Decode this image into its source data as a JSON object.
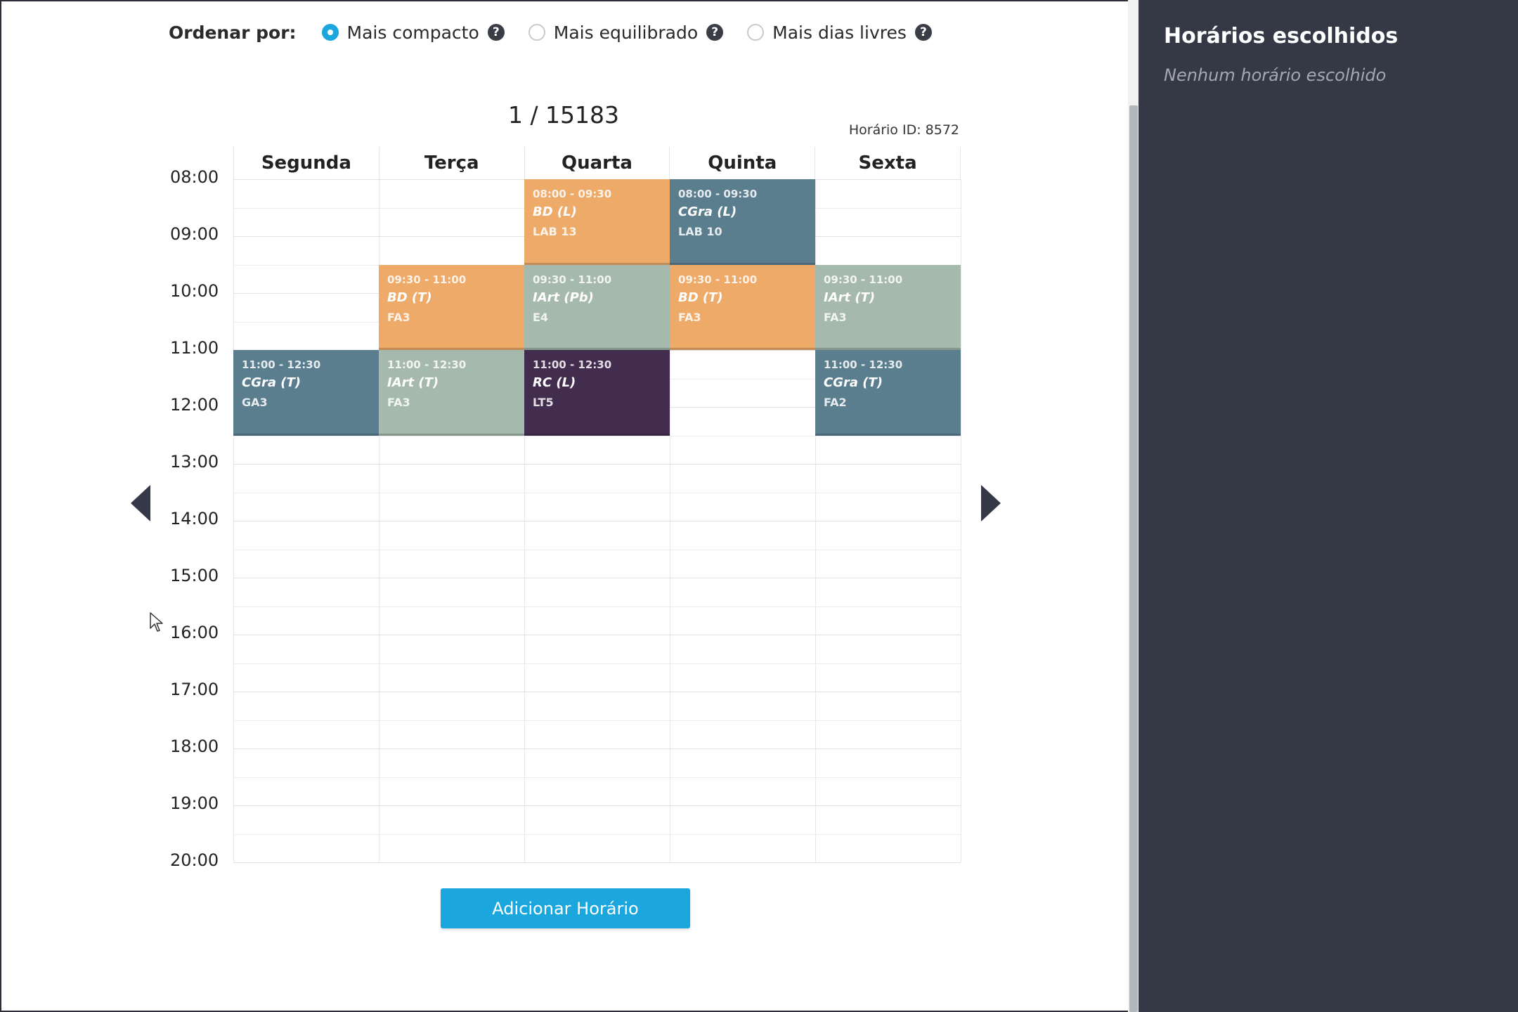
{
  "sort": {
    "label": "Ordenar por:",
    "options": [
      {
        "label": "Mais compacto",
        "checked": true
      },
      {
        "label": "Mais equilibrado",
        "checked": false
      },
      {
        "label": "Mais dias livres",
        "checked": false
      }
    ],
    "help_glyph": "?"
  },
  "pager": {
    "counter": "1 / 15183",
    "schedule_id": "Horário ID: 8572"
  },
  "timetable": {
    "days": [
      "Segunda",
      "Terça",
      "Quarta",
      "Quinta",
      "Sexta"
    ],
    "hours": [
      "08:00",
      "09:00",
      "10:00",
      "11:00",
      "12:00",
      "13:00",
      "14:00",
      "15:00",
      "16:00",
      "17:00",
      "18:00",
      "19:00",
      "20:00"
    ],
    "start_hour": 8,
    "end_hour": 20,
    "events": [
      {
        "day": 2,
        "start": 8.0,
        "end": 9.5,
        "time": "08:00 - 09:30",
        "name": "BD (L)",
        "room": "LAB 13",
        "color": "#eeaa68"
      },
      {
        "day": 3,
        "start": 8.0,
        "end": 9.5,
        "time": "08:00 - 09:30",
        "name": "CGra (L)",
        "room": "LAB 10",
        "color": "#5b7e8f"
      },
      {
        "day": 1,
        "start": 9.5,
        "end": 11.0,
        "time": "09:30 - 11:00",
        "name": "BD (T)",
        "room": "FA3",
        "color": "#eeaa68"
      },
      {
        "day": 2,
        "start": 9.5,
        "end": 11.0,
        "time": "09:30 - 11:00",
        "name": "IArt (Pb)",
        "room": "E4",
        "color": "#a6b9ad"
      },
      {
        "day": 3,
        "start": 9.5,
        "end": 11.0,
        "time": "09:30 - 11:00",
        "name": "BD (T)",
        "room": "FA3",
        "color": "#eeaa68"
      },
      {
        "day": 4,
        "start": 9.5,
        "end": 11.0,
        "time": "09:30 - 11:00",
        "name": "IArt (T)",
        "room": "FA3",
        "color": "#a6b9ad"
      },
      {
        "day": 0,
        "start": 11.0,
        "end": 12.5,
        "time": "11:00 - 12:30",
        "name": "CGra (T)",
        "room": "GA3",
        "color": "#5b7e8f"
      },
      {
        "day": 1,
        "start": 11.0,
        "end": 12.5,
        "time": "11:00 - 12:30",
        "name": "IArt (T)",
        "room": "FA3",
        "color": "#a6b9ad"
      },
      {
        "day": 2,
        "start": 11.0,
        "end": 12.5,
        "time": "11:00 - 12:30",
        "name": "RC (L)",
        "room": "LT5",
        "color": "#432d4f"
      },
      {
        "day": 4,
        "start": 11.0,
        "end": 12.5,
        "time": "11:00 - 12:30",
        "name": "CGra (T)",
        "room": "FA2",
        "color": "#5b7e8f"
      }
    ]
  },
  "add_button": {
    "label": "Adicionar Horário"
  },
  "side_panel": {
    "title": "Horários escolhidos",
    "empty_text": "Nenhum horário escolhido"
  },
  "colors": {
    "accent": "#1ba6dd",
    "sidebar_bg": "#353946",
    "orange": "#eeaa68",
    "slate": "#5b7e8f",
    "sage": "#a6b9ad",
    "plum": "#432d4f"
  },
  "icons": {
    "help": "question-circle-icon",
    "prev": "caret-left-icon",
    "next": "caret-right-icon",
    "cursor": "mouse-pointer-icon"
  }
}
